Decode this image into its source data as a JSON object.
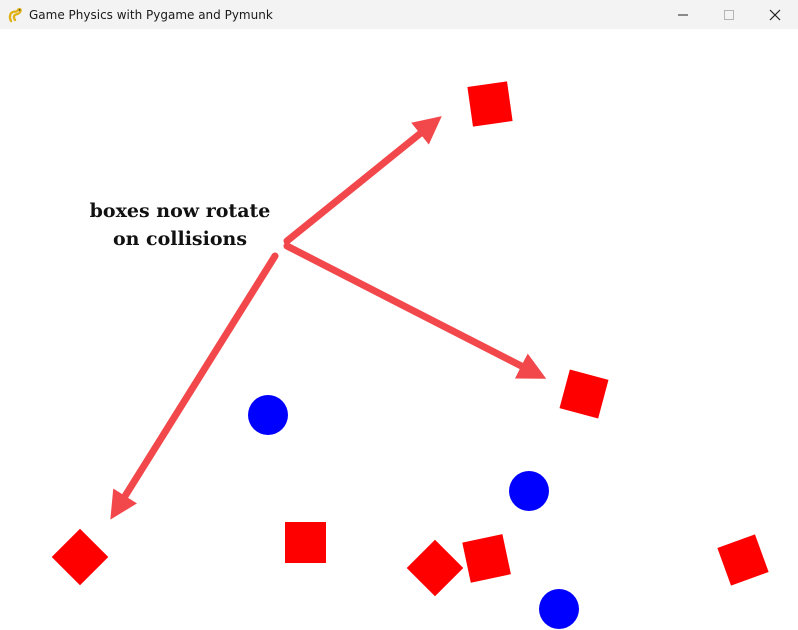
{
  "window": {
    "title": "Game Physics with Pygame and Pymunk",
    "app_icon": "pygame-snake-icon",
    "controls": [
      "minimize-icon",
      "maximize-icon",
      "close-icon"
    ]
  },
  "annotation": {
    "line1": "boxes now rotate",
    "line2": "on collisions"
  },
  "colors": {
    "box": "#ff0000",
    "ball": "#0000ff",
    "arrow": "#f2474b",
    "background": "#ffffff"
  }
}
